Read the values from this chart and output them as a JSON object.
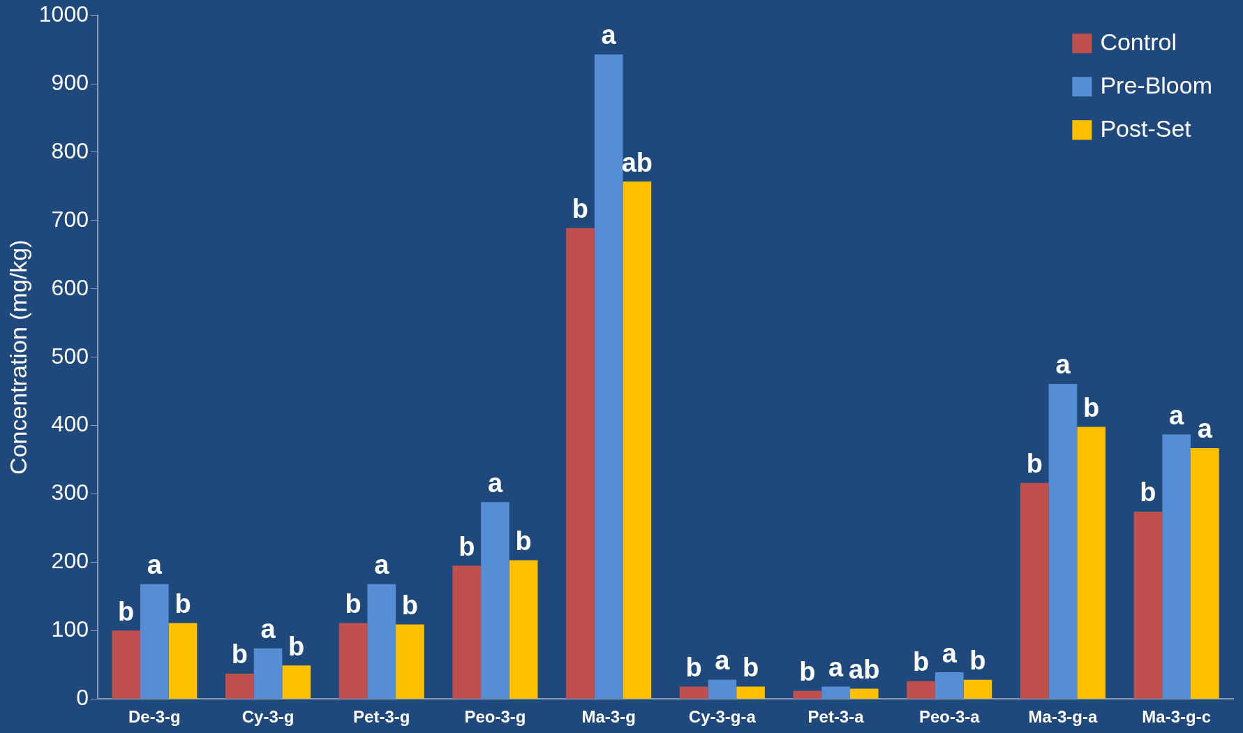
{
  "chart_data": {
    "type": "bar",
    "ylabel": "Concentration (mg/kg)",
    "categories": [
      "De-3-g",
      "Cy-3-g",
      "Pet-3-g",
      "Peo-3-g",
      "Ma-3-g",
      "Cy-3-g-a",
      "Pet-3-a",
      "Peo-3-a",
      "Ma-3-g-a",
      "Ma-3-g-c"
    ],
    "series": [
      {
        "name": "Control",
        "color": "#c0504d",
        "values": [
          100,
          37,
          111,
          195,
          689,
          18,
          12,
          26,
          316,
          274
        ],
        "value_labels": [
          "b",
          "b",
          "b",
          "b",
          "b",
          "b",
          "b",
          "b",
          "b",
          "b"
        ]
      },
      {
        "name": "Pre-Bloom",
        "color": "#558ed5",
        "values": [
          168,
          74,
          168,
          288,
          943,
          28,
          18,
          39,
          461,
          387
        ],
        "value_labels": [
          "a",
          "a",
          "a",
          "a",
          "a",
          "a",
          "a",
          "a",
          "a",
          "a"
        ]
      },
      {
        "name": "Post-Set",
        "color": "#ffc000",
        "values": [
          111,
          49,
          109,
          203,
          757,
          18,
          15,
          28,
          398,
          367
        ],
        "value_labels": [
          "b",
          "b",
          "b",
          "b",
          "ab",
          "b",
          "ab",
          "b",
          "b",
          "a"
        ]
      }
    ],
    "ylim": [
      0,
      1000
    ],
    "yticks": [
      0,
      100,
      200,
      300,
      400,
      500,
      600,
      700,
      800,
      900,
      1000
    ],
    "grid": false,
    "legend": "top right"
  }
}
